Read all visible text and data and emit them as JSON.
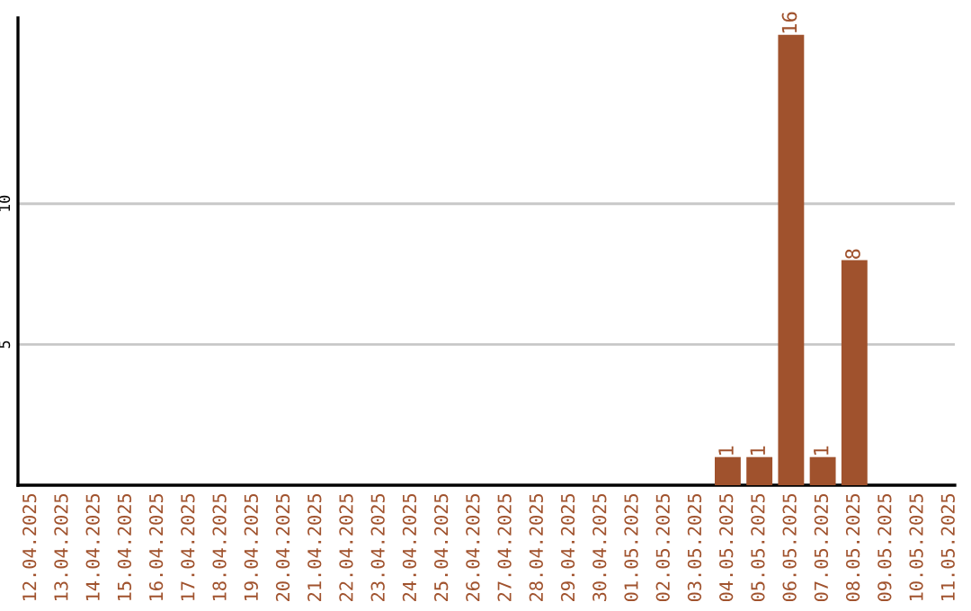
{
  "chart_data": {
    "type": "bar",
    "categories": [
      "12.04.2025",
      "13.04.2025",
      "14.04.2025",
      "15.04.2025",
      "16.04.2025",
      "17.04.2025",
      "18.04.2025",
      "19.04.2025",
      "20.04.2025",
      "21.04.2025",
      "22.04.2025",
      "23.04.2025",
      "24.04.2025",
      "25.04.2025",
      "26.04.2025",
      "27.04.2025",
      "28.04.2025",
      "29.04.2025",
      "30.04.2025",
      "01.05.2025",
      "02.05.2025",
      "03.05.2025",
      "04.05.2025",
      "05.05.2025",
      "06.05.2025",
      "07.05.2025",
      "08.05.2025",
      "09.05.2025",
      "10.05.2025",
      "11.05.2025"
    ],
    "values": [
      0,
      0,
      0,
      0,
      0,
      0,
      0,
      0,
      0,
      0,
      0,
      0,
      0,
      0,
      0,
      0,
      0,
      0,
      0,
      0,
      0,
      0,
      1,
      1,
      16,
      1,
      8,
      0,
      0,
      0
    ],
    "value_labels": [
      null,
      null,
      null,
      null,
      null,
      null,
      null,
      null,
      null,
      null,
      null,
      null,
      null,
      null,
      null,
      null,
      null,
      null,
      null,
      null,
      null,
      null,
      "1",
      "1",
      "16",
      "1",
      "8",
      null,
      null,
      null
    ],
    "color": "#a0522d",
    "ylim": [
      0,
      16.6
    ],
    "yticks": [
      5,
      10
    ],
    "grid": "y",
    "legend": false
  }
}
